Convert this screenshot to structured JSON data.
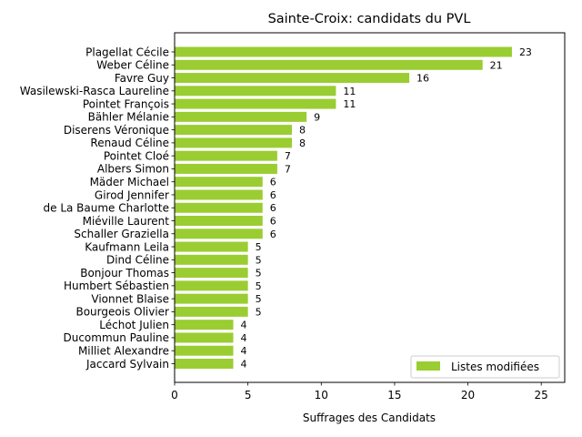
{
  "chart_data": {
    "type": "bar",
    "orientation": "horizontal",
    "title": "Sainte-Croix: candidats du PVL",
    "xlabel": "Suffrages des Candidats",
    "ylabel": "",
    "xlim": [
      0,
      26.6
    ],
    "xticks": [
      0,
      5,
      10,
      15,
      20,
      25
    ],
    "grid": false,
    "legend": {
      "position": "bottom-right"
    },
    "series": [
      {
        "name": "Listes modifiées",
        "color": "#9acd32",
        "categories": [
          "Plagellat Cécile",
          "Weber Céline",
          "Favre Guy",
          "Wasilewski-Rasca Laureline",
          "Pointet François",
          "Bähler Mélanie",
          "Diserens Véronique",
          "Renaud Céline",
          "Pointet Cloé",
          "Albers Simon",
          "Mäder Michael",
          "Girod Jennifer",
          "de La Baume Charlotte",
          "Miéville Laurent",
          "Schaller Graziella",
          "Kaufmann Leila",
          "Dind Céline",
          "Bonjour Thomas",
          "Humbert Sébastien",
          "Vionnet Blaise",
          "Bourgeois Olivier",
          "Léchot Julien",
          "Ducommun Pauline",
          "Milliet Alexandre",
          "Jaccard Sylvain"
        ],
        "values": [
          23,
          21,
          16,
          11,
          11,
          9,
          8,
          8,
          7,
          7,
          6,
          6,
          6,
          6,
          6,
          5,
          5,
          5,
          5,
          5,
          5,
          4,
          4,
          4,
          4
        ]
      }
    ]
  }
}
